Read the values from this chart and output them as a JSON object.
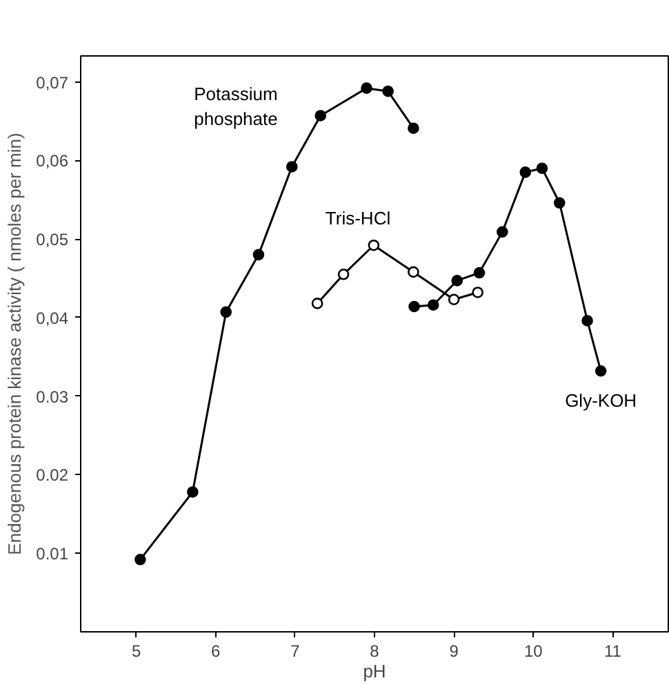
{
  "chart_data": {
    "type": "line",
    "xlabel": "pH",
    "ylabel": "Endogenous protein kinase activity ( nmoles per min)",
    "xlim": [
      4.3,
      11.7
    ],
    "ylim": [
      0,
      0.0733
    ],
    "xticks": [
      5,
      6,
      7,
      8,
      9,
      10,
      11
    ],
    "yticks": [
      {
        "value": 0.01,
        "label": "0.01"
      },
      {
        "value": 0.02,
        "label": "0.02"
      },
      {
        "value": 0.03,
        "label": "0.03"
      },
      {
        "value": 0.04,
        "label": "0,04"
      },
      {
        "value": 0.05,
        "label": "0,05"
      },
      {
        "value": 0.06,
        "label": "0,06"
      },
      {
        "value": 0.07,
        "label": "0,07"
      }
    ],
    "grid": false,
    "marker": "circle",
    "line_style": "solid",
    "series": [
      {
        "name": "Potassium\nphosphate",
        "color": "#000000",
        "x": [
          5.05,
          5.71,
          6.13,
          6.54,
          6.96,
          7.32,
          7.9,
          8.17,
          8.49
        ],
        "values": [
          0.0092,
          0.0178,
          0.0407,
          0.048,
          0.0592,
          0.0657,
          0.0692,
          0.0688,
          0.0641
        ]
      },
      {
        "name": "Tris-HCl",
        "color": "#000000",
        "colors": [
          "#ffffff",
          "#ffffff",
          "#ffffff",
          "#ffffff",
          "#ffffff",
          "#ffffff"
        ],
        "x": [
          7.28,
          7.61,
          7.99,
          8.49,
          9.0,
          9.3
        ],
        "values": [
          0.0418,
          0.0455,
          0.0492,
          0.0458,
          0.0423,
          0.0432
        ]
      },
      {
        "name": "Gly-KOH",
        "color": "#000000",
        "x": [
          8.5,
          8.74,
          9.04,
          9.32,
          9.61,
          9.9,
          10.11,
          10.33,
          10.68,
          10.85
        ],
        "values": [
          0.0414,
          0.0416,
          0.0447,
          0.0457,
          0.0509,
          0.0585,
          0.059,
          0.0546,
          0.0396,
          0.0332
        ]
      }
    ]
  }
}
